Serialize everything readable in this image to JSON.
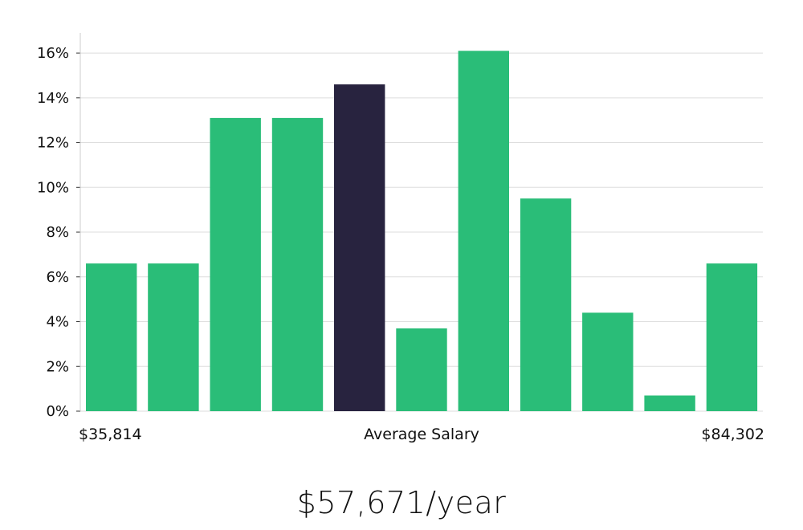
{
  "colors": {
    "bar": "#2ABD78",
    "highlight": "#28233F",
    "grid": "#DEDEDE",
    "axis": "#CCCCCC",
    "text": "#111111"
  },
  "chart_data": {
    "type": "bar",
    "highlight_index": 4,
    "values": [
      6.6,
      6.6,
      13.1,
      13.1,
      14.6,
      3.7,
      16.1,
      9.5,
      4.4,
      0.7,
      6.6
    ],
    "ylim": [
      0,
      16.9
    ],
    "yticks": [
      0,
      2,
      4,
      6,
      8,
      10,
      12,
      14,
      16
    ],
    "ytick_labels": [
      "0%",
      "2%",
      "4%",
      "6%",
      "8%",
      "10%",
      "12%",
      "14%",
      "16%"
    ],
    "x_min_label": "$35,814",
    "x_max_label": "$84,302",
    "xlabel": "Average Salary",
    "grid": true
  },
  "summary": {
    "salary": "$57,671/year"
  }
}
